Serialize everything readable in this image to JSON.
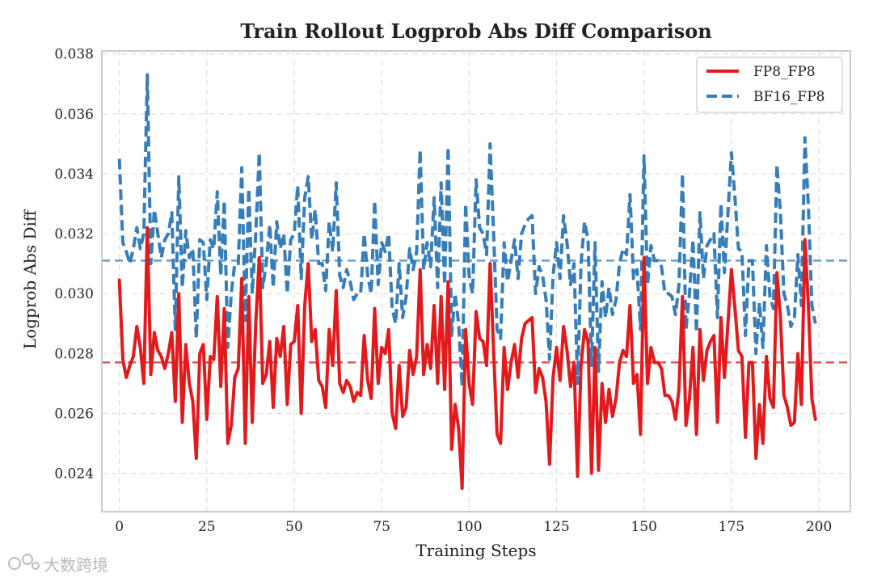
{
  "chart_data": {
    "type": "line",
    "title": "Train Rollout Logprob Abs Diff Comparison",
    "xlabel": "Training Steps",
    "ylabel": "Logprob Abs Diff",
    "xlim": [
      -5,
      209
    ],
    "ylim": [
      0.02272,
      0.0381
    ],
    "xticks": [
      0,
      25,
      50,
      75,
      100,
      125,
      150,
      175,
      200
    ],
    "yticks": [
      0.024,
      0.026,
      0.028,
      0.03,
      0.032,
      0.034,
      0.036,
      0.038
    ],
    "ytick_labels": [
      "0.024",
      "0.026",
      "0.028",
      "0.030",
      "0.032",
      "0.034",
      "0.036",
      "0.038"
    ],
    "grid": true,
    "legend_position": "top-right",
    "series": [
      {
        "name": "FP8_FP8",
        "color": "#e31a1c",
        "style": "solid",
        "mean": 0.0277,
        "values": [
          0.03045,
          0.0278,
          0.0272,
          0.0276,
          0.0279,
          0.0289,
          0.0282,
          0.027,
          0.0322,
          0.0273,
          0.0287,
          0.0281,
          0.0279,
          0.0275,
          0.028,
          0.0287,
          0.0264,
          0.03,
          0.0257,
          0.0283,
          0.027,
          0.0264,
          0.0245,
          0.028,
          0.0283,
          0.0258,
          0.0279,
          0.0278,
          0.0299,
          0.0269,
          0.0295,
          0.025,
          0.0256,
          0.0272,
          0.0275,
          0.0305,
          0.025,
          0.0299,
          0.0257,
          0.029,
          0.0312,
          0.027,
          0.0273,
          0.0284,
          0.0262,
          0.0285,
          0.0279,
          0.0289,
          0.0263,
          0.0283,
          0.0284,
          0.0296,
          0.026,
          0.0296,
          0.031,
          0.0284,
          0.0288,
          0.0271,
          0.0269,
          0.0262,
          0.0288,
          0.0276,
          0.0301,
          0.027,
          0.0267,
          0.0271,
          0.0269,
          0.0264,
          0.0267,
          0.0266,
          0.0286,
          0.0271,
          0.0265,
          0.0295,
          0.027,
          0.0282,
          0.028,
          0.0288,
          0.026,
          0.0255,
          0.0276,
          0.0259,
          0.0262,
          0.0281,
          0.0273,
          0.0279,
          0.0308,
          0.0273,
          0.0283,
          0.0275,
          0.0296,
          0.027,
          0.0299,
          0.0268,
          0.0304,
          0.0248,
          0.0263,
          0.0255,
          0.0235,
          0.0288,
          0.027,
          0.0263,
          0.0294,
          0.0285,
          0.0284,
          0.0276,
          0.031,
          0.0281,
          0.0253,
          0.025,
          0.0282,
          0.0268,
          0.0277,
          0.0283,
          0.0272,
          0.0285,
          0.029,
          0.0291,
          0.0292,
          0.0267,
          0.0275,
          0.0272,
          0.0264,
          0.0243,
          0.0272,
          0.0282,
          0.0271,
          0.0289,
          0.0281,
          0.0269,
          0.0277,
          0.0239,
          0.0276,
          0.0288,
          0.0284,
          0.024,
          0.0282,
          0.0241,
          0.027,
          0.0257,
          0.0268,
          0.0259,
          0.0265,
          0.0277,
          0.0281,
          0.0279,
          0.0296,
          0.027,
          0.0273,
          0.0253,
          0.0312,
          0.027,
          0.0282,
          0.0277,
          0.0277,
          0.0275,
          0.0266,
          0.0266,
          0.0264,
          0.0258,
          0.0268,
          0.0299,
          0.0256,
          0.0265,
          0.0282,
          0.0253,
          0.0288,
          0.0271,
          0.0281,
          0.0284,
          0.0286,
          0.0257,
          0.0292,
          0.0272,
          0.029,
          0.0308,
          0.0295,
          0.0281,
          0.0279,
          0.0252,
          0.0277,
          0.0277,
          0.0245,
          0.0263,
          0.025,
          0.0279,
          0.0265,
          0.0262,
          0.0307,
          0.0292,
          0.0266,
          0.0262,
          0.0256,
          0.0257,
          0.028,
          0.0263,
          0.0318,
          0.0296,
          0.0265,
          0.0258
        ]
      },
      {
        "name": "BF16_FP8",
        "color": "#377eb8",
        "style": "dashed",
        "mean": 0.0311,
        "values": [
          0.0345,
          0.0317,
          0.0314,
          0.031,
          0.0315,
          0.0322,
          0.0315,
          0.032,
          0.0373,
          0.031,
          0.0328,
          0.032,
          0.0312,
          0.0318,
          0.032,
          0.0327,
          0.0288,
          0.0339,
          0.0302,
          0.0321,
          0.0312,
          0.0315,
          0.0285,
          0.0318,
          0.0317,
          0.0298,
          0.0318,
          0.0315,
          0.0334,
          0.0306,
          0.0331,
          0.0282,
          0.03,
          0.031,
          0.031,
          0.0342,
          0.0291,
          0.0335,
          0.03,
          0.032,
          0.0347,
          0.0302,
          0.031,
          0.0323,
          0.0302,
          0.0324,
          0.0315,
          0.032,
          0.03,
          0.0318,
          0.032,
          0.0336,
          0.0305,
          0.0332,
          0.0339,
          0.0318,
          0.0328,
          0.031,
          0.031,
          0.0301,
          0.0324,
          0.0314,
          0.0337,
          0.0306,
          0.0302,
          0.0308,
          0.0304,
          0.0298,
          0.03,
          0.03,
          0.032,
          0.0306,
          0.03,
          0.0331,
          0.0303,
          0.0317,
          0.0314,
          0.032,
          0.0295,
          0.029,
          0.031,
          0.0292,
          0.0299,
          0.0315,
          0.0308,
          0.0314,
          0.0348,
          0.0308,
          0.0317,
          0.0309,
          0.0332,
          0.0302,
          0.0337,
          0.0303,
          0.0349,
          0.0286,
          0.03,
          0.029,
          0.0269,
          0.033,
          0.0306,
          0.03,
          0.0338,
          0.0322,
          0.032,
          0.0313,
          0.035,
          0.032,
          0.0288,
          0.0285,
          0.0317,
          0.0304,
          0.0311,
          0.0318,
          0.0305,
          0.032,
          0.0323,
          0.0325,
          0.0326,
          0.03,
          0.0309,
          0.0306,
          0.0298,
          0.0278,
          0.0306,
          0.0317,
          0.0305,
          0.0326,
          0.0317,
          0.0303,
          0.031,
          0.027,
          0.031,
          0.0324,
          0.0318,
          0.0276,
          0.0317,
          0.0274,
          0.0304,
          0.0292,
          0.0302,
          0.0293,
          0.0298,
          0.031,
          0.0315,
          0.0313,
          0.0333,
          0.0305,
          0.0308,
          0.0288,
          0.0346,
          0.0303,
          0.0316,
          0.0311,
          0.0311,
          0.0309,
          0.03,
          0.03,
          0.0299,
          0.0293,
          0.0303,
          0.034,
          0.0288,
          0.03,
          0.0318,
          0.0287,
          0.0327,
          0.0305,
          0.0316,
          0.0318,
          0.032,
          0.0292,
          0.033,
          0.0307,
          0.0327,
          0.0347,
          0.0332,
          0.0315,
          0.0314,
          0.0286,
          0.0311,
          0.0311,
          0.028,
          0.0297,
          0.0282,
          0.0316,
          0.0299,
          0.0295,
          0.0343,
          0.0327,
          0.03,
          0.0296,
          0.0289,
          0.0292,
          0.0313,
          0.0296,
          0.0352,
          0.0329,
          0.0296,
          0.029
        ]
      }
    ]
  },
  "watermark": {
    "text": "大数跨境"
  }
}
